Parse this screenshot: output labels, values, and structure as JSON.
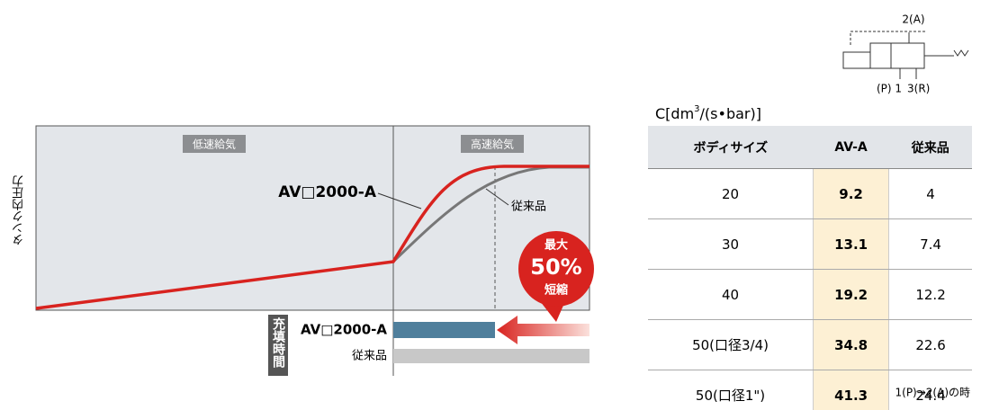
{
  "symbol": {
    "port_a": "2(A)",
    "port_p": "(P) 1",
    "port_r": "3(R)"
  },
  "graph": {
    "y_label": "タンク内圧力",
    "phase_low": "低速給気",
    "phase_high": "高速給気",
    "product_label": "AV□2000-A",
    "conventional_label": "従来品",
    "callout": [
      "最大",
      "50%",
      "短縮"
    ]
  },
  "fill_time": {
    "axis_label": "充填時間",
    "rows": [
      "AV□2000-A",
      "従来品"
    ]
  },
  "table": {
    "unit": [
      "C[dm",
      "3",
      "/(s•bar)]"
    ],
    "headers": [
      "ボディサイズ",
      "AV-A",
      "従来品"
    ],
    "rows": [
      [
        "20",
        "9.2",
        "4"
      ],
      [
        "30",
        "13.1",
        "7.4"
      ],
      [
        "40",
        "19.2",
        "12.2"
      ],
      [
        "50(口径3/4)",
        "34.8",
        "22.6"
      ],
      [
        "50(口径1\")",
        "41.3",
        "24.4"
      ]
    ],
    "note": "1(P)→2(A)の時"
  }
}
